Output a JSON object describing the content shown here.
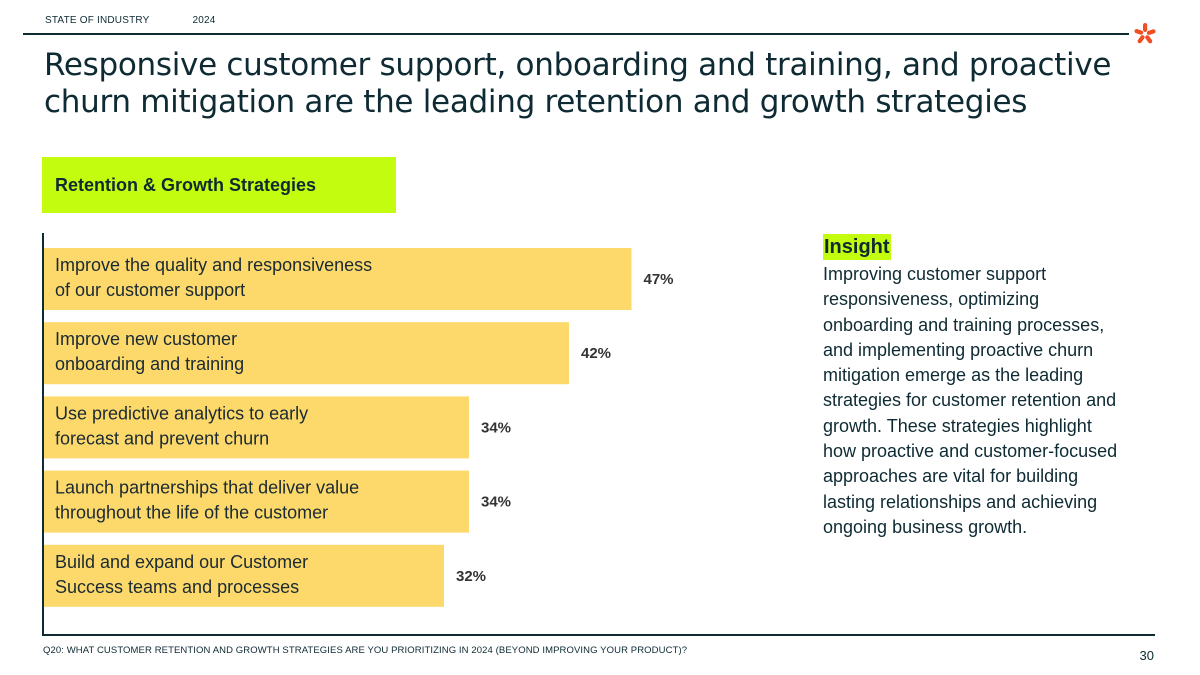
{
  "header": {
    "section": "STATE OF INDUSTRY",
    "year": "2024",
    "headline": "Responsive customer support, onboarding and training, and proactive churn mitigation are the leading retention and growth strategies"
  },
  "chart_data": {
    "type": "bar",
    "orientation": "horizontal",
    "title": "Retention & Growth Strategies",
    "categories": [
      [
        "Improve the quality and responsiveness",
        "of our customer support"
      ],
      [
        "Improve new customer",
        "onboarding and training"
      ],
      [
        "Use predictive analytics to early",
        "forecast and prevent churn"
      ],
      [
        "Launch partnerships that deliver value",
        "throughout the life of the customer"
      ],
      [
        "Build and expand our Customer",
        "Success teams and processes"
      ]
    ],
    "values": [
      47,
      42,
      34,
      34,
      32
    ],
    "value_labels": [
      "47%",
      "42%",
      "34%",
      "34%",
      "32%"
    ],
    "xlim": [
      0,
      50
    ],
    "grid": false,
    "bar_color": "#fdd96b"
  },
  "insight": {
    "title": "Insight",
    "body": "Improving customer support responsiveness, optimizing onboarding and training processes, and implementing proactive churn mitigation emerge as the leading strategies for customer retention and growth. These strategies highlight how proactive and customer-focused approaches are vital for building lasting relationships and achieving ongoing business growth."
  },
  "footer": {
    "question": "Q20: WHAT CUSTOMER RETENTION AND GROWTH STRATEGIES ARE YOU PRIORITIZING IN 2024 (BEYOND IMPROVING YOUR PRODUCT)?",
    "page": "30"
  },
  "colors": {
    "accent": "#c4fc0f",
    "bar": "#fdd96b",
    "text": "#0e2a33",
    "logo": "#f04e23"
  },
  "icons": {
    "logo": "asterisk-logo-icon"
  }
}
